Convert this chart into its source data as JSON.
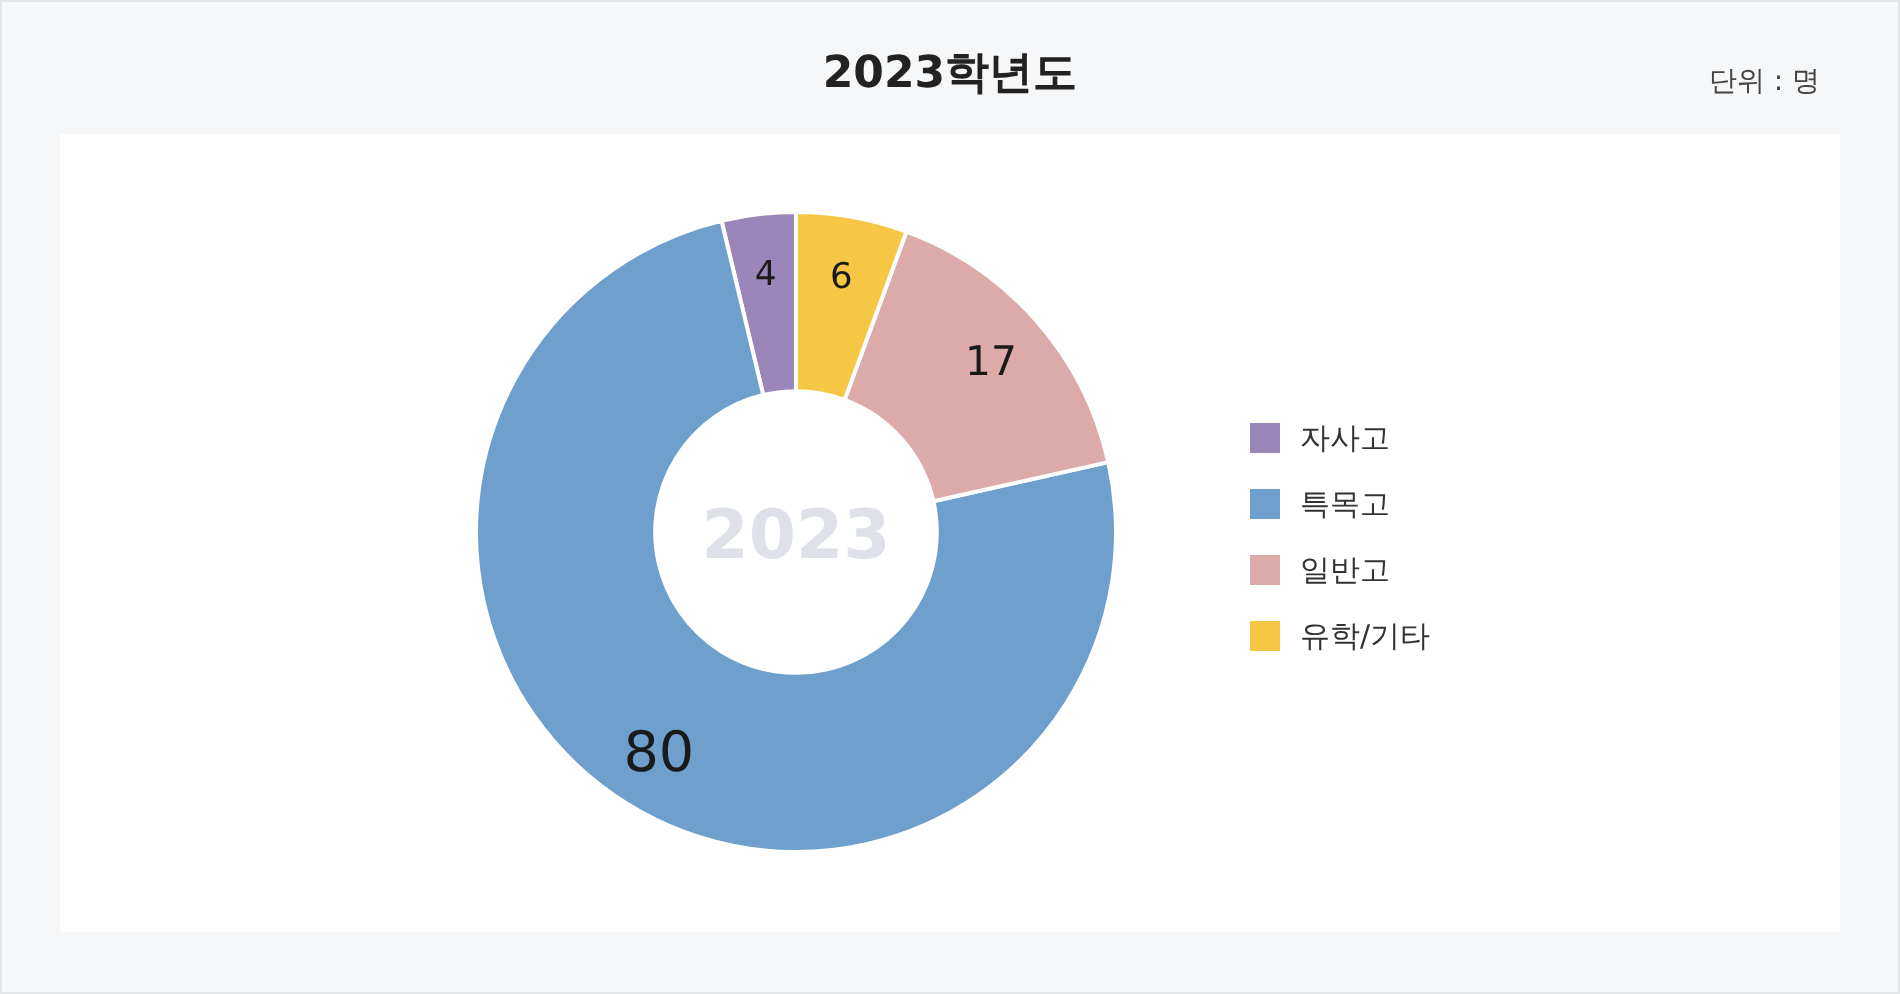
{
  "chart_data": {
    "type": "donut",
    "title": "2023학년도",
    "categories": [
      "자사고",
      "특목고",
      "일반고",
      "유학/기타"
    ],
    "values": [
      4,
      80,
      17,
      6
    ],
    "colors": [
      "#9b86ba",
      "#6fa0cd",
      "#dcaaa8",
      "#f6c744"
    ],
    "data_labels": true,
    "legend": "right",
    "annotations": [
      "2023",
      "단위 : 명"
    ]
  }
}
